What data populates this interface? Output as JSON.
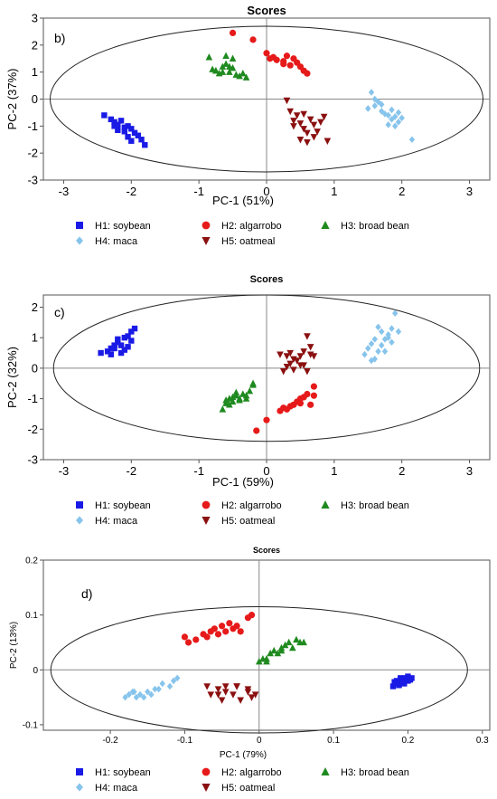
{
  "chart_data": [
    {
      "type": "scatter",
      "panel_label": "b)",
      "title": "Scores",
      "xlabel": "PC-1 (51%)",
      "ylabel": "PC-2 (37%)",
      "xlim": [
        -3.3,
        3.3
      ],
      "ylim": [
        -3,
        3
      ],
      "xticks": [
        -3,
        -2,
        -1,
        0,
        1,
        2,
        3
      ],
      "yticks": [
        -3,
        -2,
        -1,
        0,
        1,
        2,
        3
      ],
      "grid": false,
      "ellipse": {
        "center": [
          0,
          0
        ],
        "rx": 3.2,
        "ry": 2.7
      },
      "legend_position": "bottom",
      "series": [
        {
          "name": "H1: soybean",
          "color": "#1a1ae6",
          "marker": "square",
          "x": [
            -2.4,
            -2.3,
            -2.25,
            -2.2,
            -2.15,
            -2.25,
            -2.1,
            -2.05,
            -2.2,
            -2.0,
            -2.1,
            -1.95,
            -2.05,
            -1.9,
            -1.85,
            -2.0,
            -1.8
          ],
          "y": [
            -0.6,
            -0.75,
            -0.85,
            -0.95,
            -0.8,
            -1.0,
            -1.05,
            -1.0,
            -1.15,
            -1.1,
            -1.2,
            -1.25,
            -1.4,
            -1.35,
            -1.5,
            -1.55,
            -1.7
          ]
        },
        {
          "name": "H2: algarrobo",
          "color": "#e61a1a",
          "marker": "circle",
          "x": [
            -0.5,
            -0.2,
            0,
            0.1,
            0.15,
            0.25,
            0.35,
            0.45,
            0.3,
            0.4,
            0.5,
            0.55,
            0.6,
            0.25,
            0.05
          ],
          "y": [
            2.45,
            2.2,
            1.7,
            1.55,
            1.45,
            1.3,
            1.25,
            1.35,
            1.6,
            1.5,
            1.2,
            1.05,
            0.95,
            1.4,
            1.5
          ]
        },
        {
          "name": "H3: broad bean",
          "color": "#1f8a1f",
          "marker": "triangle-up",
          "x": [
            -0.85,
            -0.8,
            -0.75,
            -0.7,
            -0.65,
            -0.6,
            -0.55,
            -0.5,
            -0.45,
            -0.4,
            -0.75,
            -0.6,
            -0.5,
            -0.35,
            -0.3,
            -0.55,
            -0.65
          ],
          "y": [
            1.55,
            1.1,
            1.05,
            0.95,
            1.2,
            1.3,
            1.0,
            1.15,
            0.9,
            0.85,
            1.05,
            1.6,
            1.5,
            0.95,
            0.8,
            1.2,
            1.0
          ]
        },
        {
          "name": "H4: maca",
          "color": "#87c4ec",
          "marker": "diamond",
          "x": [
            1.55,
            1.5,
            1.6,
            1.7,
            1.75,
            1.8,
            1.85,
            1.9,
            1.95,
            1.65,
            1.7,
            1.85,
            1.95,
            2.0,
            1.8,
            1.9,
            2.15,
            1.6
          ],
          "y": [
            0.25,
            -0.35,
            -0.25,
            -0.45,
            -0.55,
            -0.6,
            -0.75,
            -0.65,
            -0.85,
            -0.1,
            -0.2,
            -0.4,
            -0.5,
            -0.7,
            -0.95,
            -1.0,
            -1.5,
            0.0
          ]
        },
        {
          "name": "H5: oatmeal",
          "color": "#8b1010",
          "marker": "triangle-down",
          "x": [
            0.3,
            0.35,
            0.4,
            0.45,
            0.5,
            0.55,
            0.6,
            0.65,
            0.7,
            0.75,
            0.5,
            0.6,
            0.7,
            0.8,
            0.9,
            0.55,
            0.85,
            0.4
          ],
          "y": [
            -0.05,
            -0.45,
            -0.8,
            -0.6,
            -0.9,
            -1.1,
            -1.25,
            -0.75,
            -0.95,
            -1.2,
            -1.5,
            -1.6,
            -1.4,
            -0.85,
            -1.55,
            -0.55,
            -0.65,
            -1.0
          ]
        }
      ]
    },
    {
      "type": "scatter",
      "panel_label": "c)",
      "title": "Scores",
      "xlabel": "PC-1 (59%)",
      "ylabel": "PC-2 (32%)",
      "xlim": [
        -3.3,
        3.3
      ],
      "ylim": [
        -3,
        2.4
      ],
      "xticks": [
        -3,
        -2,
        -1,
        0,
        1,
        2,
        3
      ],
      "yticks": [
        -3,
        -2,
        -1,
        0,
        1,
        2
      ],
      "grid": false,
      "ellipse": {
        "center": [
          0,
          0
        ],
        "rx": 3.15,
        "ry": 2.4
      },
      "legend_position": "bottom",
      "series": [
        {
          "name": "H1: soybean",
          "color": "#1a1ae6",
          "marker": "square",
          "x": [
            -2.45,
            -2.35,
            -2.3,
            -2.25,
            -2.2,
            -2.15,
            -2.1,
            -2.05,
            -2.0,
            -2.3,
            -2.2,
            -2.1,
            -2.0,
            -2.15,
            -2.25,
            -2.05,
            -1.95
          ],
          "y": [
            0.5,
            0.55,
            0.65,
            0.75,
            0.85,
            0.5,
            0.6,
            0.7,
            0.9,
            0.45,
            0.95,
            1.0,
            1.2,
            0.75,
            0.65,
            1.05,
            1.3
          ]
        },
        {
          "name": "H2: algarrobo",
          "color": "#e61a1a",
          "marker": "circle",
          "x": [
            -0.15,
            0,
            0.2,
            0.25,
            0.35,
            0.4,
            0.45,
            0.5,
            0.55,
            0.6,
            0.65,
            0.7,
            0.3,
            0.5,
            0.7
          ],
          "y": [
            -2.05,
            -1.7,
            -1.4,
            -1.3,
            -1.25,
            -1.2,
            -1.1,
            -1.0,
            -0.95,
            -0.85,
            -1.2,
            -0.6,
            -1.35,
            -1.15,
            -0.9
          ]
        },
        {
          "name": "H3: broad bean",
          "color": "#1f8a1f",
          "marker": "triangle-up",
          "x": [
            -0.65,
            -0.6,
            -0.55,
            -0.5,
            -0.45,
            -0.4,
            -0.35,
            -0.3,
            -0.25,
            -0.2,
            -0.6,
            -0.5,
            -0.4,
            -0.3,
            -0.55,
            -0.45,
            -0.2
          ],
          "y": [
            -1.35,
            -1.15,
            -1.0,
            -1.1,
            -0.9,
            -1.0,
            -0.85,
            -1.0,
            -0.75,
            -0.5,
            -1.05,
            -0.95,
            -1.05,
            -0.9,
            -1.2,
            -0.8,
            -0.55
          ]
        },
        {
          "name": "H4: maca",
          "color": "#87c4ec",
          "marker": "diamond",
          "x": [
            1.45,
            1.5,
            1.55,
            1.6,
            1.65,
            1.7,
            1.75,
            1.8,
            1.85,
            1.9,
            1.6,
            1.7,
            1.8,
            1.75,
            1.65,
            1.85,
            1.55,
            1.95
          ],
          "y": [
            0.45,
            0.65,
            0.8,
            0.3,
            0.55,
            1.2,
            0.95,
            1.1,
            1.3,
            1.8,
            0.95,
            0.75,
            1.0,
            0.55,
            1.35,
            0.85,
            0.25,
            1.2
          ]
        },
        {
          "name": "H5: oatmeal",
          "color": "#8b1010",
          "marker": "triangle-down",
          "x": [
            0.2,
            0.3,
            0.35,
            0.4,
            0.45,
            0.5,
            0.55,
            0.6,
            0.65,
            0.7,
            0.25,
            0.4,
            0.55,
            0.65,
            0.35,
            0.5,
            0.3,
            0.6
          ],
          "y": [
            0.45,
            0.4,
            0.5,
            0.3,
            0.25,
            0.1,
            0.55,
            1.05,
            0.7,
            0.4,
            -0.1,
            -0.05,
            0.1,
            0.45,
            0.15,
            0.4,
            0.05,
            -0.1
          ]
        }
      ]
    },
    {
      "type": "scatter",
      "panel_label": "d)",
      "title": "Scores",
      "xlabel": "PC-1 (79%)",
      "ylabel": "PC-2 (13%)",
      "xlim": [
        -0.29,
        0.31
      ],
      "ylim": [
        -0.11,
        0.2
      ],
      "xticks": [
        -0.2,
        -0.1,
        0,
        0.1,
        0.2,
        0.3
      ],
      "yticks": [
        -0.1,
        0,
        0.1,
        0.2
      ],
      "grid": false,
      "ellipse": {
        "center": [
          0,
          0
        ],
        "rx": 0.28,
        "ry": 0.115
      },
      "legend_position": "bottom",
      "series": [
        {
          "name": "H1: soybean",
          "color": "#1a1ae6",
          "marker": "square",
          "x": [
            0.18,
            0.185,
            0.19,
            0.195,
            0.2,
            0.205,
            0.185,
            0.195,
            0.19,
            0.2,
            0.182,
            0.198,
            0.188,
            0.203,
            0.193
          ],
          "y": [
            -0.03,
            -0.025,
            -0.02,
            -0.015,
            -0.02,
            -0.015,
            -0.02,
            -0.025,
            -0.015,
            -0.012,
            -0.022,
            -0.018,
            -0.028,
            -0.018,
            -0.024
          ]
        },
        {
          "name": "H2: algarrobo",
          "color": "#e61a1a",
          "marker": "circle",
          "x": [
            -0.1,
            -0.095,
            -0.085,
            -0.075,
            -0.07,
            -0.065,
            -0.06,
            -0.055,
            -0.05,
            -0.045,
            -0.04,
            -0.035,
            -0.03,
            -0.025,
            -0.015,
            -0.01
          ],
          "y": [
            0.06,
            0.05,
            0.055,
            0.065,
            0.06,
            0.07,
            0.075,
            0.065,
            0.08,
            0.07,
            0.085,
            0.075,
            0.08,
            0.07,
            0.095,
            0.1
          ]
        },
        {
          "name": "H3: broad bean",
          "color": "#1f8a1f",
          "marker": "triangle-up",
          "x": [
            0.0,
            0.005,
            0.01,
            0.015,
            0.02,
            0.025,
            0.03,
            0.035,
            0.04,
            0.045,
            0.05,
            0.055,
            0.06,
            0.01,
            0.03
          ],
          "y": [
            0.015,
            0.02,
            0.02,
            0.03,
            0.035,
            0.03,
            0.04,
            0.045,
            0.05,
            0.04,
            0.055,
            0.05,
            0.05,
            0.015,
            0.035
          ]
        },
        {
          "name": "H4: maca",
          "color": "#87c4ec",
          "marker": "diamond",
          "x": [
            -0.18,
            -0.175,
            -0.17,
            -0.165,
            -0.16,
            -0.155,
            -0.15,
            -0.14,
            -0.135,
            -0.13,
            -0.12,
            -0.115,
            -0.11,
            -0.168,
            -0.145
          ],
          "y": [
            -0.05,
            -0.045,
            -0.04,
            -0.05,
            -0.045,
            -0.05,
            -0.04,
            -0.035,
            -0.035,
            -0.025,
            -0.03,
            -0.02,
            -0.015,
            -0.04,
            -0.045
          ]
        },
        {
          "name": "H5: oatmeal",
          "color": "#8b1010",
          "marker": "triangle-down",
          "x": [
            -0.07,
            -0.065,
            -0.055,
            -0.05,
            -0.045,
            -0.035,
            -0.03,
            -0.025,
            -0.015,
            -0.01,
            -0.005,
            -0.045,
            -0.03,
            -0.055,
            -0.015
          ],
          "y": [
            -0.03,
            -0.045,
            -0.035,
            -0.055,
            -0.03,
            -0.045,
            -0.03,
            -0.055,
            -0.04,
            -0.05,
            -0.045,
            -0.04,
            -0.03,
            -0.045,
            -0.035
          ]
        }
      ]
    }
  ]
}
